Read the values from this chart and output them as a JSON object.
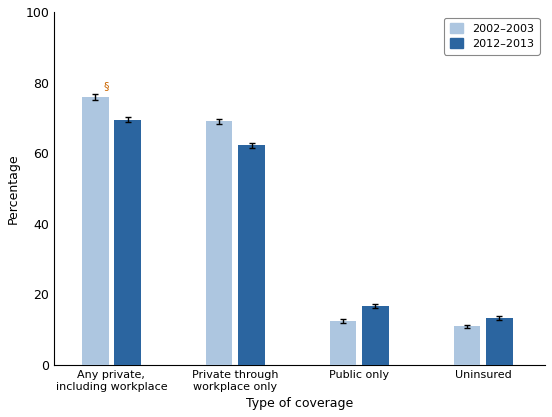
{
  "categories": [
    "Any private,\nincluding workplace",
    "Private through\nworkplace only",
    "Public only",
    "Uninsured"
  ],
  "values_2002": [
    76.0,
    69.0,
    12.5,
    11.0
  ],
  "values_2012": [
    69.5,
    62.2,
    16.8,
    13.3
  ],
  "errors_2002": [
    0.8,
    0.8,
    0.5,
    0.4
  ],
  "errors_2012": [
    0.7,
    0.8,
    0.6,
    0.5
  ],
  "color_2002": "#adc6e0",
  "color_2012": "#2b65a0",
  "ylabel": "Percentage",
  "xlabel": "Type of coverage",
  "ylim": [
    0,
    100
  ],
  "yticks": [
    0,
    20,
    40,
    60,
    80,
    100
  ],
  "legend_labels": [
    "2002–2003",
    "2012–2013"
  ],
  "section_symbol": "§",
  "bar_width": 0.28
}
